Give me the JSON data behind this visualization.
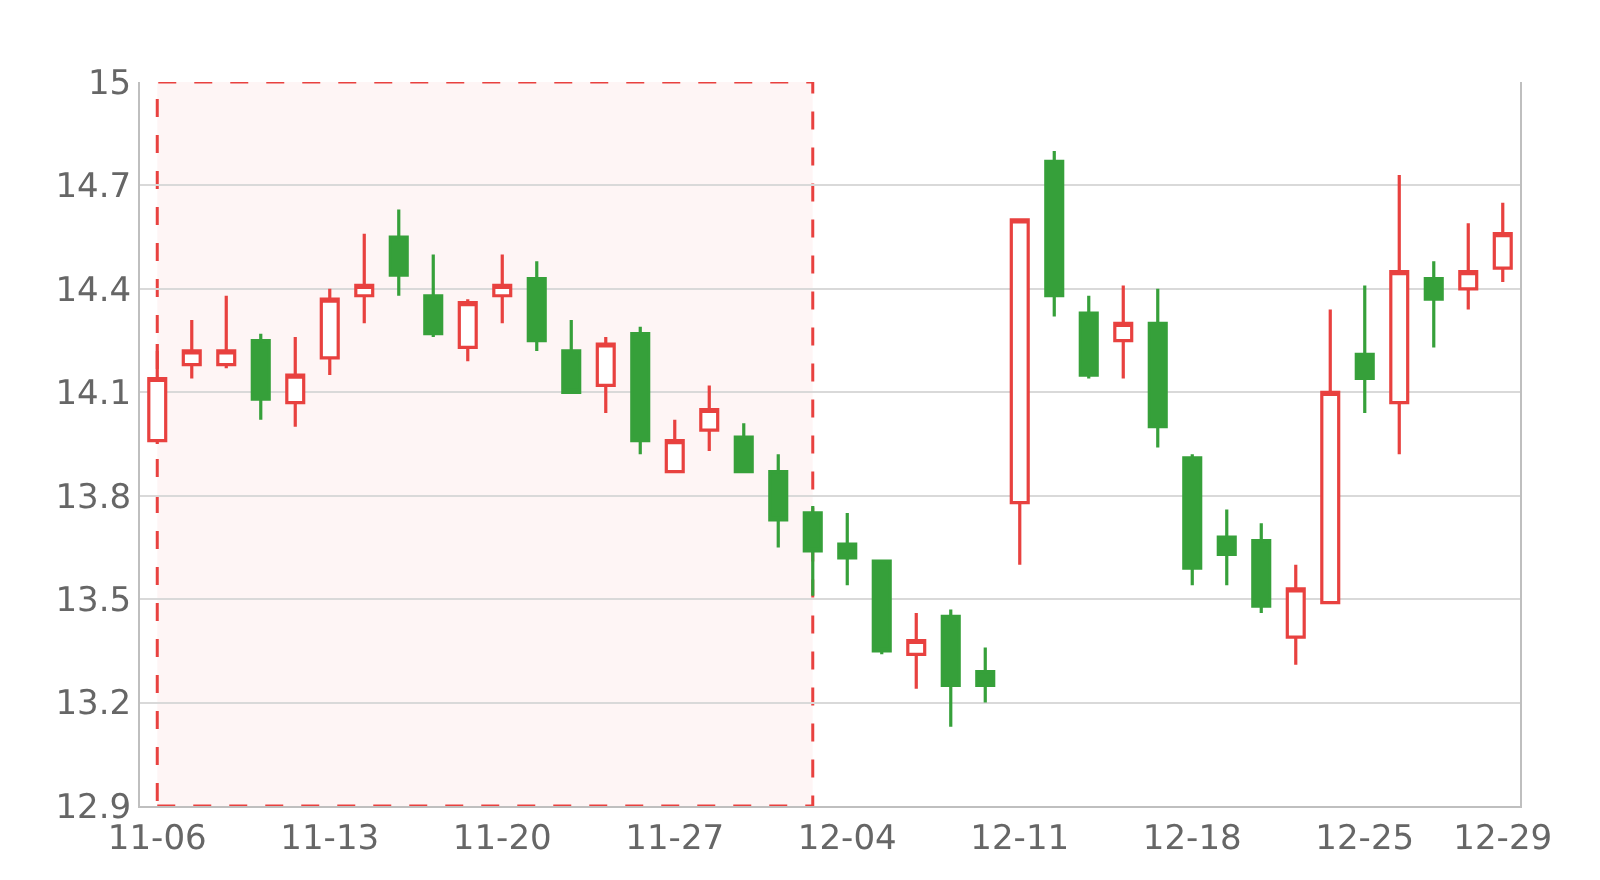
{
  "chart_data": {
    "type": "candlestick",
    "categories": [
      "11-06",
      null,
      null,
      null,
      null,
      "11-13",
      null,
      null,
      null,
      null,
      "11-20",
      null,
      null,
      null,
      null,
      "11-27",
      null,
      null,
      null,
      null,
      "12-04",
      null,
      null,
      null,
      null,
      "12-11",
      null,
      null,
      null,
      null,
      "12-18",
      null,
      null,
      null,
      null,
      "12-25",
      null,
      null,
      null,
      "12-29"
    ],
    "ohlc": [
      [
        13.96,
        14.24,
        13.95,
        14.14
      ],
      [
        14.18,
        14.31,
        14.14,
        14.22
      ],
      [
        14.18,
        14.38,
        14.17,
        14.22
      ],
      [
        14.25,
        14.27,
        14.02,
        14.08
      ],
      [
        14.07,
        14.26,
        14.0,
        14.15
      ],
      [
        14.2,
        14.4,
        14.15,
        14.37
      ],
      [
        14.38,
        14.56,
        14.3,
        14.41
      ],
      [
        14.55,
        14.63,
        14.38,
        14.44
      ],
      [
        14.38,
        14.5,
        14.26,
        14.27
      ],
      [
        14.23,
        14.37,
        14.19,
        14.36
      ],
      [
        14.38,
        14.5,
        14.3,
        14.41
      ],
      [
        14.43,
        14.48,
        14.22,
        14.25
      ],
      [
        14.22,
        14.31,
        14.1,
        14.1
      ],
      [
        14.12,
        14.26,
        14.04,
        14.24
      ],
      [
        14.27,
        14.29,
        13.92,
        13.96
      ],
      [
        13.87,
        14.02,
        13.87,
        13.96
      ],
      [
        13.99,
        14.12,
        13.93,
        14.05
      ],
      [
        13.97,
        14.01,
        13.87,
        13.87
      ],
      [
        13.87,
        13.92,
        13.65,
        13.73
      ],
      [
        13.75,
        13.77,
        13.51,
        13.64
      ],
      [
        13.66,
        13.75,
        13.54,
        13.62
      ],
      [
        13.61,
        13.61,
        13.34,
        13.35
      ],
      [
        13.34,
        13.46,
        13.24,
        13.38
      ],
      [
        13.45,
        13.47,
        13.13,
        13.25
      ],
      [
        13.29,
        13.36,
        13.2,
        13.25
      ],
      [
        13.78,
        14.6,
        13.6,
        14.6
      ],
      [
        14.77,
        14.8,
        14.32,
        14.38
      ],
      [
        14.33,
        14.38,
        14.14,
        14.15
      ],
      [
        14.25,
        14.41,
        14.14,
        14.3
      ],
      [
        14.3,
        14.4,
        13.94,
        14.0
      ],
      [
        13.91,
        13.92,
        13.54,
        13.59
      ],
      [
        13.68,
        13.76,
        13.54,
        13.63
      ],
      [
        13.67,
        13.72,
        13.46,
        13.48
      ],
      [
        13.39,
        13.6,
        13.31,
        13.53
      ],
      [
        13.49,
        14.34,
        13.49,
        14.1
      ],
      [
        14.21,
        14.41,
        14.04,
        14.14
      ],
      [
        14.07,
        14.73,
        13.92,
        14.45
      ],
      [
        14.43,
        14.48,
        14.23,
        14.37
      ],
      [
        14.4,
        14.59,
        14.34,
        14.45
      ],
      [
        14.46,
        14.65,
        14.42,
        14.56
      ]
    ],
    "colors": [
      "#e8413f",
      "#e8413f",
      "#e8413f",
      "#36a03a",
      "#e8413f",
      "#e8413f",
      "#e8413f",
      "#36a03a",
      "#36a03a",
      "#e8413f",
      "#e8413f",
      "#36a03a",
      "#36a03a",
      "#e8413f",
      "#36a03a",
      "#e8413f",
      "#e8413f",
      "#36a03a",
      "#36a03a",
      "#36a03a",
      "#36a03a",
      "#36a03a",
      "#e8413f",
      "#36a03a",
      "#36a03a",
      "#e8413f",
      "#36a03a",
      "#36a03a",
      "#e8413f",
      "#36a03a",
      "#36a03a",
      "#36a03a",
      "#36a03a",
      "#e8413f",
      "#e8413f",
      "#36a03a",
      "#e8413f",
      "#36a03a",
      "#e8413f",
      "#e8413f"
    ],
    "ylim": [
      12.9,
      15
    ],
    "yticks": [
      12.9,
      13.2,
      13.5,
      13.8,
      14.1,
      14.4,
      14.7,
      15
    ],
    "grid": "y",
    "legend": false
  }
}
